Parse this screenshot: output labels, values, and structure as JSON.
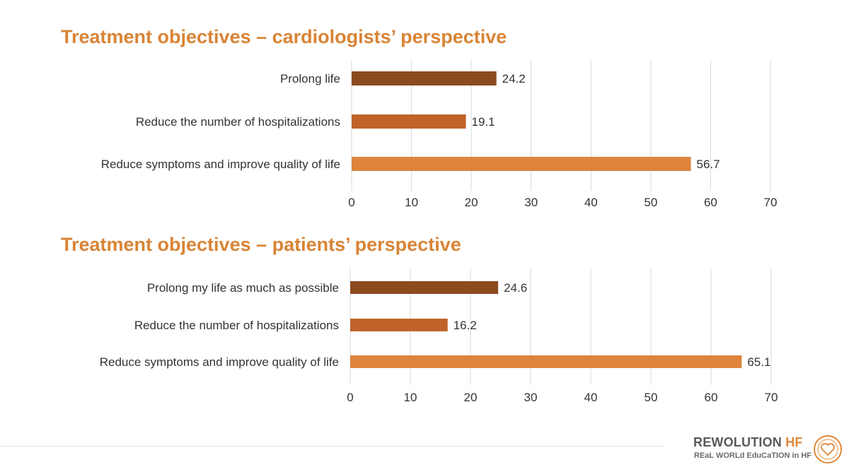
{
  "chart_data": [
    {
      "type": "bar",
      "orientation": "horizontal",
      "title": "Treatment objectives – cardiologists’ perspective",
      "categories": [
        "Prolong life",
        "Reduce the number of hospitalizations",
        "Reduce symptoms and improve quality of life"
      ],
      "values": [
        24.2,
        19.1,
        56.7
      ],
      "value_labels": [
        "24.2",
        "19.1",
        "56.7"
      ],
      "colors": [
        "#8c4a1f",
        "#c0622a",
        "#de843c"
      ],
      "xlim": [
        0,
        70
      ],
      "xticks": [
        "0",
        "10",
        "20",
        "30",
        "40",
        "50",
        "60",
        "70"
      ],
      "grid": true
    },
    {
      "type": "bar",
      "orientation": "horizontal",
      "title": "Treatment objectives – patients’ perspective",
      "categories": [
        "Prolong my life as much as possible",
        "Reduce the number of hospitalizations",
        "Reduce symptoms and improve quality of life"
      ],
      "values": [
        24.6,
        16.2,
        65.1
      ],
      "value_labels": [
        "24.6",
        "16.2",
        "65.1"
      ],
      "colors": [
        "#8c4a1f",
        "#c0622a",
        "#de843c"
      ],
      "xlim": [
        0,
        70
      ],
      "xticks": [
        "0",
        "10",
        "20",
        "30",
        "40",
        "50",
        "60",
        "70"
      ],
      "grid": true
    }
  ],
  "logo": {
    "name_main": "REWOLUTION",
    "name_accent": "HF",
    "tagline": "REaL WORLd EduCaTION in HF",
    "accent_color": "#e0873a",
    "icon": "heart-circle-icon"
  }
}
